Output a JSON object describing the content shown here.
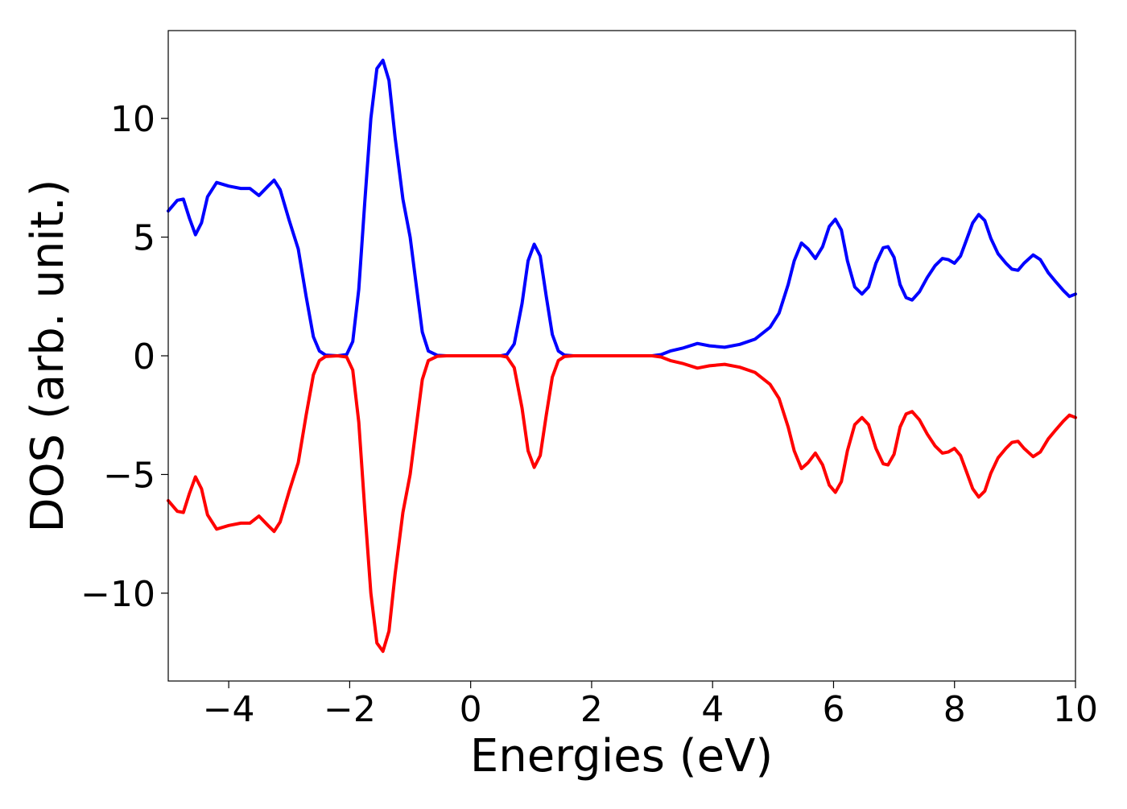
{
  "chart_data": {
    "type": "line",
    "title": "",
    "xlabel": "Energies (eV)",
    "ylabel": "DOS (arb. unit.)",
    "xlim": [
      -5,
      10
    ],
    "ylim": [
      -13.7,
      13.7
    ],
    "x_ticks": [
      -4,
      -2,
      0,
      2,
      4,
      6,
      8,
      10
    ],
    "y_ticks": [
      -10,
      -5,
      0,
      5,
      10
    ],
    "x_tick_labels": [
      "−4",
      "−2",
      "0",
      "2",
      "4",
      "6",
      "8",
      "10"
    ],
    "y_tick_labels": [
      "−10",
      "−5",
      "0",
      "5",
      "10"
    ],
    "grid": false,
    "legend": "none",
    "series": [
      {
        "color": "#0000ff",
        "points": [
          [
            -5.0,
            6.1
          ],
          [
            -4.85,
            6.55
          ],
          [
            -4.75,
            6.6
          ],
          [
            -4.65,
            5.8
          ],
          [
            -4.55,
            5.1
          ],
          [
            -4.45,
            5.6
          ],
          [
            -4.35,
            6.7
          ],
          [
            -4.2,
            7.3
          ],
          [
            -4.0,
            7.15
          ],
          [
            -3.8,
            7.05
          ],
          [
            -3.65,
            7.05
          ],
          [
            -3.5,
            6.75
          ],
          [
            -3.35,
            7.15
          ],
          [
            -3.25,
            7.4
          ],
          [
            -3.15,
            7.0
          ],
          [
            -3.0,
            5.7
          ],
          [
            -2.85,
            4.5
          ],
          [
            -2.72,
            2.5
          ],
          [
            -2.6,
            0.8
          ],
          [
            -2.5,
            0.2
          ],
          [
            -2.4,
            0.03
          ],
          [
            -2.2,
            0.0
          ],
          [
            -2.05,
            0.05
          ],
          [
            -1.95,
            0.6
          ],
          [
            -1.85,
            2.8
          ],
          [
            -1.75,
            6.5
          ],
          [
            -1.65,
            10.0
          ],
          [
            -1.55,
            12.1
          ],
          [
            -1.45,
            12.45
          ],
          [
            -1.35,
            11.6
          ],
          [
            -1.25,
            9.2
          ],
          [
            -1.12,
            6.6
          ],
          [
            -1.0,
            5.0
          ],
          [
            -0.9,
            3.0
          ],
          [
            -0.8,
            1.0
          ],
          [
            -0.7,
            0.2
          ],
          [
            -0.55,
            0.02
          ],
          [
            -0.4,
            0.0
          ],
          [
            0.5,
            0.0
          ],
          [
            0.6,
            0.05
          ],
          [
            0.72,
            0.5
          ],
          [
            0.85,
            2.2
          ],
          [
            0.95,
            4.0
          ],
          [
            1.05,
            4.7
          ],
          [
            1.15,
            4.2
          ],
          [
            1.25,
            2.5
          ],
          [
            1.35,
            0.9
          ],
          [
            1.45,
            0.2
          ],
          [
            1.55,
            0.03
          ],
          [
            1.7,
            0.0
          ],
          [
            3.0,
            0.0
          ],
          [
            3.15,
            0.05
          ],
          [
            3.3,
            0.2
          ],
          [
            3.5,
            0.32
          ],
          [
            3.75,
            0.52
          ],
          [
            3.95,
            0.42
          ],
          [
            4.2,
            0.36
          ],
          [
            4.45,
            0.48
          ],
          [
            4.7,
            0.7
          ],
          [
            4.95,
            1.2
          ],
          [
            5.1,
            1.8
          ],
          [
            5.25,
            3.0
          ],
          [
            5.35,
            4.0
          ],
          [
            5.47,
            4.75
          ],
          [
            5.58,
            4.5
          ],
          [
            5.7,
            4.1
          ],
          [
            5.82,
            4.6
          ],
          [
            5.93,
            5.45
          ],
          [
            6.03,
            5.75
          ],
          [
            6.13,
            5.3
          ],
          [
            6.23,
            4.0
          ],
          [
            6.35,
            2.9
          ],
          [
            6.47,
            2.6
          ],
          [
            6.58,
            2.9
          ],
          [
            6.7,
            3.9
          ],
          [
            6.82,
            4.55
          ],
          [
            6.9,
            4.6
          ],
          [
            7.0,
            4.15
          ],
          [
            7.1,
            3.0
          ],
          [
            7.2,
            2.45
          ],
          [
            7.3,
            2.35
          ],
          [
            7.42,
            2.7
          ],
          [
            7.55,
            3.3
          ],
          [
            7.68,
            3.8
          ],
          [
            7.8,
            4.1
          ],
          [
            7.9,
            4.05
          ],
          [
            8.0,
            3.9
          ],
          [
            8.1,
            4.2
          ],
          [
            8.2,
            4.9
          ],
          [
            8.3,
            5.6
          ],
          [
            8.4,
            5.95
          ],
          [
            8.5,
            5.7
          ],
          [
            8.6,
            4.95
          ],
          [
            8.72,
            4.3
          ],
          [
            8.85,
            3.9
          ],
          [
            8.95,
            3.65
          ],
          [
            9.05,
            3.6
          ],
          [
            9.15,
            3.9
          ],
          [
            9.3,
            4.25
          ],
          [
            9.42,
            4.05
          ],
          [
            9.55,
            3.5
          ],
          [
            9.68,
            3.1
          ],
          [
            9.8,
            2.75
          ],
          [
            9.9,
            2.5
          ],
          [
            10.0,
            2.6
          ]
        ]
      },
      {
        "color": "#ff0000",
        "points": [
          [
            -5.0,
            -6.1
          ],
          [
            -4.85,
            -6.55
          ],
          [
            -4.75,
            -6.6
          ],
          [
            -4.65,
            -5.8
          ],
          [
            -4.55,
            -5.1
          ],
          [
            -4.45,
            -5.6
          ],
          [
            -4.35,
            -6.7
          ],
          [
            -4.2,
            -7.3
          ],
          [
            -4.0,
            -7.15
          ],
          [
            -3.8,
            -7.05
          ],
          [
            -3.65,
            -7.05
          ],
          [
            -3.5,
            -6.75
          ],
          [
            -3.35,
            -7.15
          ],
          [
            -3.25,
            -7.4
          ],
          [
            -3.15,
            -7.0
          ],
          [
            -3.0,
            -5.7
          ],
          [
            -2.85,
            -4.5
          ],
          [
            -2.72,
            -2.5
          ],
          [
            -2.6,
            -0.8
          ],
          [
            -2.5,
            -0.2
          ],
          [
            -2.4,
            -0.03
          ],
          [
            -2.2,
            0.0
          ],
          [
            -2.05,
            -0.05
          ],
          [
            -1.95,
            -0.6
          ],
          [
            -1.85,
            -2.8
          ],
          [
            -1.75,
            -6.5
          ],
          [
            -1.65,
            -10.0
          ],
          [
            -1.55,
            -12.1
          ],
          [
            -1.45,
            -12.45
          ],
          [
            -1.35,
            -11.6
          ],
          [
            -1.25,
            -9.2
          ],
          [
            -1.12,
            -6.6
          ],
          [
            -1.0,
            -5.0
          ],
          [
            -0.9,
            -3.0
          ],
          [
            -0.8,
            -1.0
          ],
          [
            -0.7,
            -0.2
          ],
          [
            -0.55,
            -0.02
          ],
          [
            -0.4,
            0.0
          ],
          [
            0.5,
            0.0
          ],
          [
            0.6,
            -0.05
          ],
          [
            0.72,
            -0.5
          ],
          [
            0.85,
            -2.2
          ],
          [
            0.95,
            -4.0
          ],
          [
            1.05,
            -4.7
          ],
          [
            1.15,
            -4.2
          ],
          [
            1.25,
            -2.5
          ],
          [
            1.35,
            -0.9
          ],
          [
            1.45,
            -0.2
          ],
          [
            1.55,
            -0.03
          ],
          [
            1.7,
            0.0
          ],
          [
            3.0,
            0.0
          ],
          [
            3.15,
            -0.05
          ],
          [
            3.3,
            -0.2
          ],
          [
            3.5,
            -0.32
          ],
          [
            3.75,
            -0.52
          ],
          [
            3.95,
            -0.42
          ],
          [
            4.2,
            -0.36
          ],
          [
            4.45,
            -0.48
          ],
          [
            4.7,
            -0.7
          ],
          [
            4.95,
            -1.2
          ],
          [
            5.1,
            -1.8
          ],
          [
            5.25,
            -3.0
          ],
          [
            5.35,
            -4.0
          ],
          [
            5.47,
            -4.75
          ],
          [
            5.58,
            -4.5
          ],
          [
            5.7,
            -4.1
          ],
          [
            5.82,
            -4.6
          ],
          [
            5.93,
            -5.45
          ],
          [
            6.03,
            -5.75
          ],
          [
            6.13,
            -5.3
          ],
          [
            6.23,
            -4.0
          ],
          [
            6.35,
            -2.9
          ],
          [
            6.47,
            -2.6
          ],
          [
            6.58,
            -2.9
          ],
          [
            6.7,
            -3.9
          ],
          [
            6.82,
            -4.55
          ],
          [
            6.9,
            -4.6
          ],
          [
            7.0,
            -4.15
          ],
          [
            7.1,
            -3.0
          ],
          [
            7.2,
            -2.45
          ],
          [
            7.3,
            -2.35
          ],
          [
            7.42,
            -2.7
          ],
          [
            7.55,
            -3.3
          ],
          [
            7.68,
            -3.8
          ],
          [
            7.8,
            -4.1
          ],
          [
            7.9,
            -4.05
          ],
          [
            8.0,
            -3.9
          ],
          [
            8.1,
            -4.2
          ],
          [
            8.2,
            -4.9
          ],
          [
            8.3,
            -5.6
          ],
          [
            8.4,
            -5.95
          ],
          [
            8.5,
            -5.7
          ],
          [
            8.6,
            -4.95
          ],
          [
            8.72,
            -4.3
          ],
          [
            8.85,
            -3.9
          ],
          [
            8.95,
            -3.65
          ],
          [
            9.05,
            -3.6
          ],
          [
            9.15,
            -3.9
          ],
          [
            9.3,
            -4.25
          ],
          [
            9.42,
            -4.05
          ],
          [
            9.55,
            -3.5
          ],
          [
            9.68,
            -3.1
          ],
          [
            9.8,
            -2.75
          ],
          [
            9.9,
            -2.5
          ],
          [
            10.0,
            -2.6
          ]
        ]
      }
    ]
  }
}
